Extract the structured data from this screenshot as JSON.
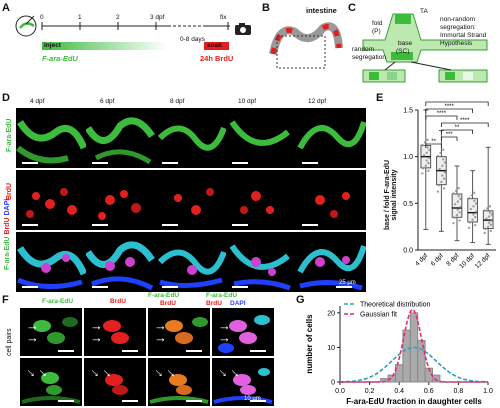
{
  "panels": {
    "A": {
      "label": "A",
      "timeline": {
        "ticks": [
          "0",
          "1",
          "2",
          "3 dpf"
        ],
        "gap_label": "0-8 days",
        "fix_label": "fix"
      },
      "inject_label": "inject",
      "inject_reagent": "F-ara-EdU",
      "soak_label": "soak",
      "soak_reagent": "24h BrdU"
    },
    "B": {
      "label": "B",
      "title": "intestine"
    },
    "C": {
      "label": "C",
      "fold": "fold",
      "fold_abbr": "(P)",
      "ta": "TA",
      "base": "base",
      "base_abbr": "(SC)",
      "left_caption": [
        "random",
        "segregation"
      ],
      "right_caption": [
        "non-random",
        "segregation:",
        "Immortal Strand",
        "Hypothesis"
      ]
    },
    "D": {
      "label": "D",
      "columns": [
        "4 dpf",
        "6 dpf",
        "8 dpf",
        "10 dpf",
        "12 dpf"
      ],
      "rows": [
        "F-ara-EdU",
        "BrdU",
        "F-ara-EdU BrdU DAPI"
      ],
      "merge_parts": [
        "F-ara-EdU",
        "BrdU",
        "DAPI"
      ],
      "scale": "25 µm"
    },
    "E": {
      "label": "E",
      "ylabel": [
        "base / fold F-ara-EdU",
        "signal intensity"
      ],
      "significance": [
        "****",
        "****",
        "****",
        "****",
        "**",
        "***",
        "**"
      ]
    },
    "F": {
      "label": "F",
      "headers": [
        "F-ara-EdU",
        "BrdU",
        "F-ara-EdU",
        "BrdU",
        "F-ara-EdU",
        "BrdU",
        "DAPI"
      ],
      "row_label": "cell pairs",
      "scale": "10 µm"
    },
    "G": {
      "label": "G",
      "legend": [
        "Theoretical distribution",
        "Gaussian fit"
      ]
    }
  },
  "chart_data": [
    {
      "type": "box",
      "categories": [
        "4 dpf",
        "6 dpf",
        "8 dpf",
        "10 dpf",
        "12 dpf"
      ],
      "medians": [
        1.0,
        0.85,
        0.45,
        0.4,
        0.32
      ],
      "q1": [
        0.88,
        0.7,
        0.35,
        0.3,
        0.23
      ],
      "q3": [
        1.12,
        1.0,
        0.6,
        0.55,
        0.42
      ],
      "whisker_low": [
        0.22,
        0.2,
        0.1,
        0.08,
        0.06
      ],
      "whisker_high": [
        1.5,
        1.28,
        0.9,
        0.85,
        1.1
      ],
      "ylim": [
        0,
        1.5
      ],
      "yticks": [
        "0.0",
        "0.5",
        "1.0",
        "1.5"
      ],
      "colors": {
        "box": "#555555",
        "points": "#888888"
      }
    },
    {
      "type": "bar",
      "x": [
        0.2,
        0.25,
        0.3,
        0.35,
        0.4,
        0.45,
        0.5,
        0.55,
        0.6,
        0.65,
        0.7,
        0.75,
        0.8
      ],
      "values": [
        0,
        0,
        1,
        2,
        5,
        15,
        20,
        12,
        4,
        2,
        0,
        0,
        0
      ],
      "xlabel": "F-ara-EdU fraction in daughter cells",
      "ylabel": "number of cells",
      "xlim": [
        0.0,
        1.0
      ],
      "ylim": [
        0,
        22
      ],
      "xticks": [
        "0.0",
        "0.2",
        "0.4",
        "0.6",
        "0.8",
        "1.0"
      ],
      "yticks": [
        "0",
        "10",
        "20"
      ],
      "series": [
        {
          "name": "Theoretical distribution",
          "color": "#2a9fbf"
        },
        {
          "name": "Gaussian fit",
          "color": "#e8287a"
        }
      ]
    }
  ]
}
